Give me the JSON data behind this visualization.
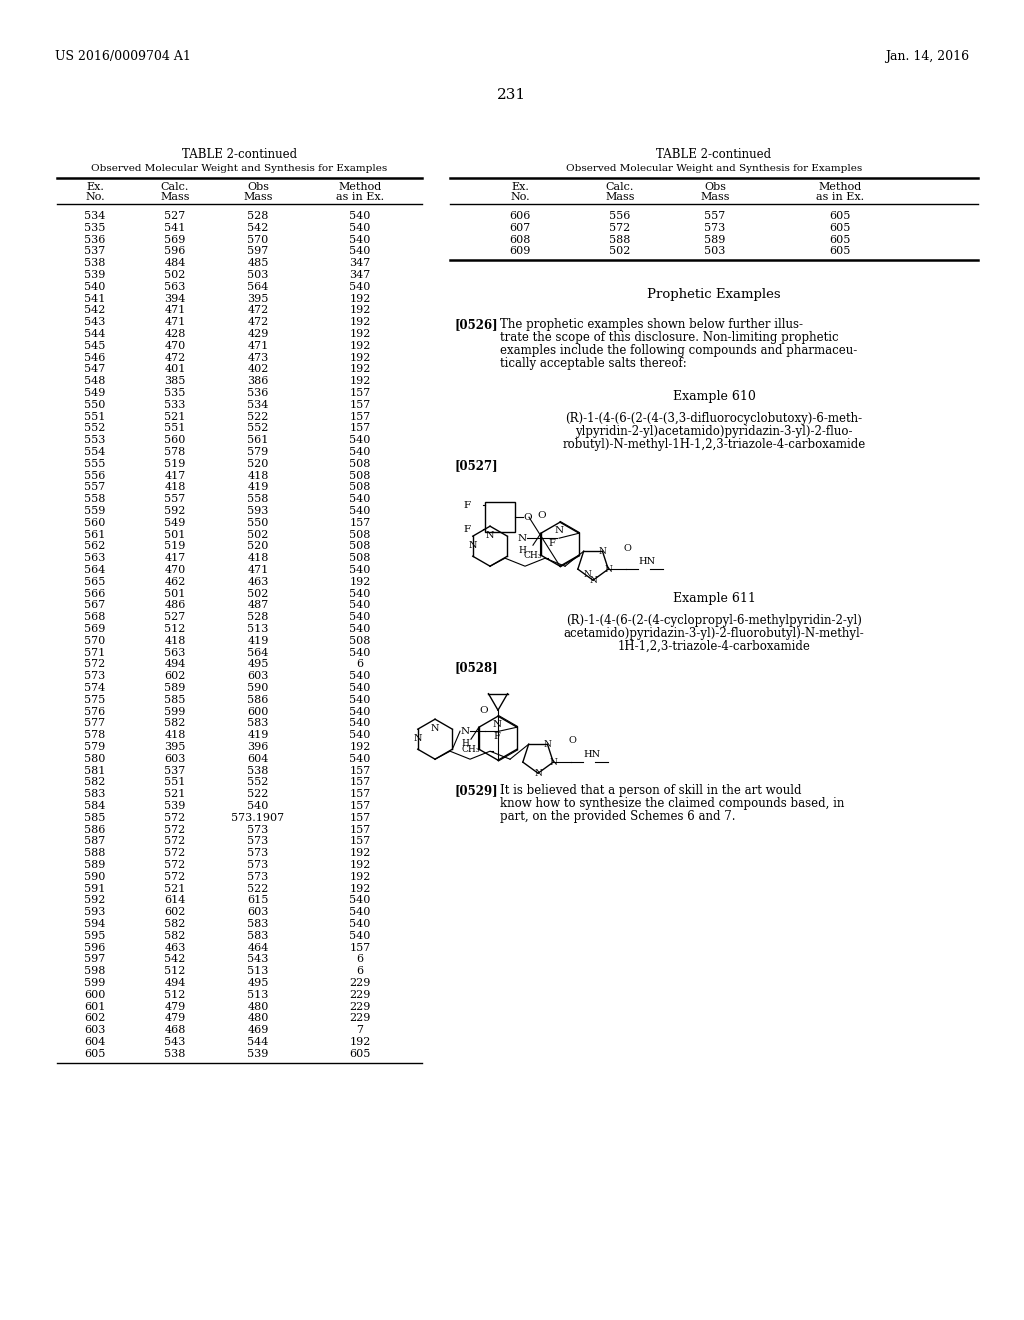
{
  "header_left": "US 2016/0009704 A1",
  "header_right": "Jan. 14, 2016",
  "page_number": "231",
  "table_title": "TABLE 2-continued",
  "table_subtitle": "Observed Molecular Weight and Synthesis for Examples",
  "col_headers_line1": [
    "Ex.",
    "Calc.",
    "Obs",
    "Method"
  ],
  "col_headers_line2": [
    "No.",
    "Mass",
    "Mass",
    "as in Ex."
  ],
  "left_table_data": [
    [
      "534",
      "527",
      "528",
      "540"
    ],
    [
      "535",
      "541",
      "542",
      "540"
    ],
    [
      "536",
      "569",
      "570",
      "540"
    ],
    [
      "537",
      "596",
      "597",
      "540"
    ],
    [
      "538",
      "484",
      "485",
      "347"
    ],
    [
      "539",
      "502",
      "503",
      "347"
    ],
    [
      "540",
      "563",
      "564",
      "540"
    ],
    [
      "541",
      "394",
      "395",
      "192"
    ],
    [
      "542",
      "471",
      "472",
      "192"
    ],
    [
      "543",
      "471",
      "472",
      "192"
    ],
    [
      "544",
      "428",
      "429",
      "192"
    ],
    [
      "545",
      "470",
      "471",
      "192"
    ],
    [
      "546",
      "472",
      "473",
      "192"
    ],
    [
      "547",
      "401",
      "402",
      "192"
    ],
    [
      "548",
      "385",
      "386",
      "192"
    ],
    [
      "549",
      "535",
      "536",
      "157"
    ],
    [
      "550",
      "533",
      "534",
      "157"
    ],
    [
      "551",
      "521",
      "522",
      "157"
    ],
    [
      "552",
      "551",
      "552",
      "157"
    ],
    [
      "553",
      "560",
      "561",
      "540"
    ],
    [
      "554",
      "578",
      "579",
      "540"
    ],
    [
      "555",
      "519",
      "520",
      "508"
    ],
    [
      "556",
      "417",
      "418",
      "508"
    ],
    [
      "557",
      "418",
      "419",
      "508"
    ],
    [
      "558",
      "557",
      "558",
      "540"
    ],
    [
      "559",
      "592",
      "593",
      "540"
    ],
    [
      "560",
      "549",
      "550",
      "157"
    ],
    [
      "561",
      "501",
      "502",
      "508"
    ],
    [
      "562",
      "519",
      "520",
      "508"
    ],
    [
      "563",
      "417",
      "418",
      "508"
    ],
    [
      "564",
      "470",
      "471",
      "540"
    ],
    [
      "565",
      "462",
      "463",
      "192"
    ],
    [
      "566",
      "501",
      "502",
      "540"
    ],
    [
      "567",
      "486",
      "487",
      "540"
    ],
    [
      "568",
      "527",
      "528",
      "540"
    ],
    [
      "569",
      "512",
      "513",
      "540"
    ],
    [
      "570",
      "418",
      "419",
      "508"
    ],
    [
      "571",
      "563",
      "564",
      "540"
    ],
    [
      "572",
      "494",
      "495",
      "6"
    ],
    [
      "573",
      "602",
      "603",
      "540"
    ],
    [
      "574",
      "589",
      "590",
      "540"
    ],
    [
      "575",
      "585",
      "586",
      "540"
    ],
    [
      "576",
      "599",
      "600",
      "540"
    ],
    [
      "577",
      "582",
      "583",
      "540"
    ],
    [
      "578",
      "418",
      "419",
      "540"
    ],
    [
      "579",
      "395",
      "396",
      "192"
    ],
    [
      "580",
      "603",
      "604",
      "540"
    ],
    [
      "581",
      "537",
      "538",
      "157"
    ],
    [
      "582",
      "551",
      "552",
      "157"
    ],
    [
      "583",
      "521",
      "522",
      "157"
    ],
    [
      "584",
      "539",
      "540",
      "157"
    ],
    [
      "585",
      "572",
      "573.1907",
      "157"
    ],
    [
      "586",
      "572",
      "573",
      "157"
    ],
    [
      "587",
      "572",
      "573",
      "157"
    ],
    [
      "588",
      "572",
      "573",
      "192"
    ],
    [
      "589",
      "572",
      "573",
      "192"
    ],
    [
      "590",
      "572",
      "573",
      "192"
    ],
    [
      "591",
      "521",
      "522",
      "192"
    ],
    [
      "592",
      "614",
      "615",
      "540"
    ],
    [
      "593",
      "602",
      "603",
      "540"
    ],
    [
      "594",
      "582",
      "583",
      "540"
    ],
    [
      "595",
      "582",
      "583",
      "540"
    ],
    [
      "596",
      "463",
      "464",
      "157"
    ],
    [
      "597",
      "542",
      "543",
      "6"
    ],
    [
      "598",
      "512",
      "513",
      "6"
    ],
    [
      "599",
      "494",
      "495",
      "229"
    ],
    [
      "600",
      "512",
      "513",
      "229"
    ],
    [
      "601",
      "479",
      "480",
      "229"
    ],
    [
      "602",
      "479",
      "480",
      "229"
    ],
    [
      "603",
      "468",
      "469",
      "7"
    ],
    [
      "604",
      "543",
      "544",
      "192"
    ],
    [
      "605",
      "538",
      "539",
      "605"
    ]
  ],
  "right_table_data": [
    [
      "606",
      "556",
      "557",
      "605"
    ],
    [
      "607",
      "572",
      "573",
      "605"
    ],
    [
      "608",
      "588",
      "589",
      "605"
    ],
    [
      "609",
      "502",
      "503",
      "605"
    ]
  ],
  "prophetic_title": "Prophetic Examples",
  "para_0526_tag": "[0526]",
  "para_0526_body": "The prophetic examples shown below further illustrate the scope of this disclosure. Non-limiting prophetic examples include the following compounds and pharmaceutically acceptable salts thereof:",
  "example610_title": "Example 610",
  "example610_name_lines": [
    "(R)-1-(4-(6-(2-(4-(3,3-difluorocyclobutoxy)-6-meth-",
    "ylpyridin-2-yl)acetamido)pyridazin-3-yl)-2-fluo-",
    "robutyl)-N-methyl-1H-1,2,3-triazole-4-carboxamide"
  ],
  "para_0527": "[0527]",
  "example611_title": "Example 611",
  "example611_name_lines": [
    "(R)-1-(4-(6-(2-(4-cyclopropyl-6-methylpyridin-2-yl)",
    "acetamido)pyridazin-3-yl)-2-fluorobutyl)-N-methyl-",
    "1H-1,2,3-triazole-4-carboxamide"
  ],
  "para_0528": "[0528]",
  "para_0529_tag": "[0529]",
  "para_0529_body": "It is believed that a person of skill in the art would know how to synthesize the claimed compounds based, in part, on the provided Schemes 6 and 7."
}
